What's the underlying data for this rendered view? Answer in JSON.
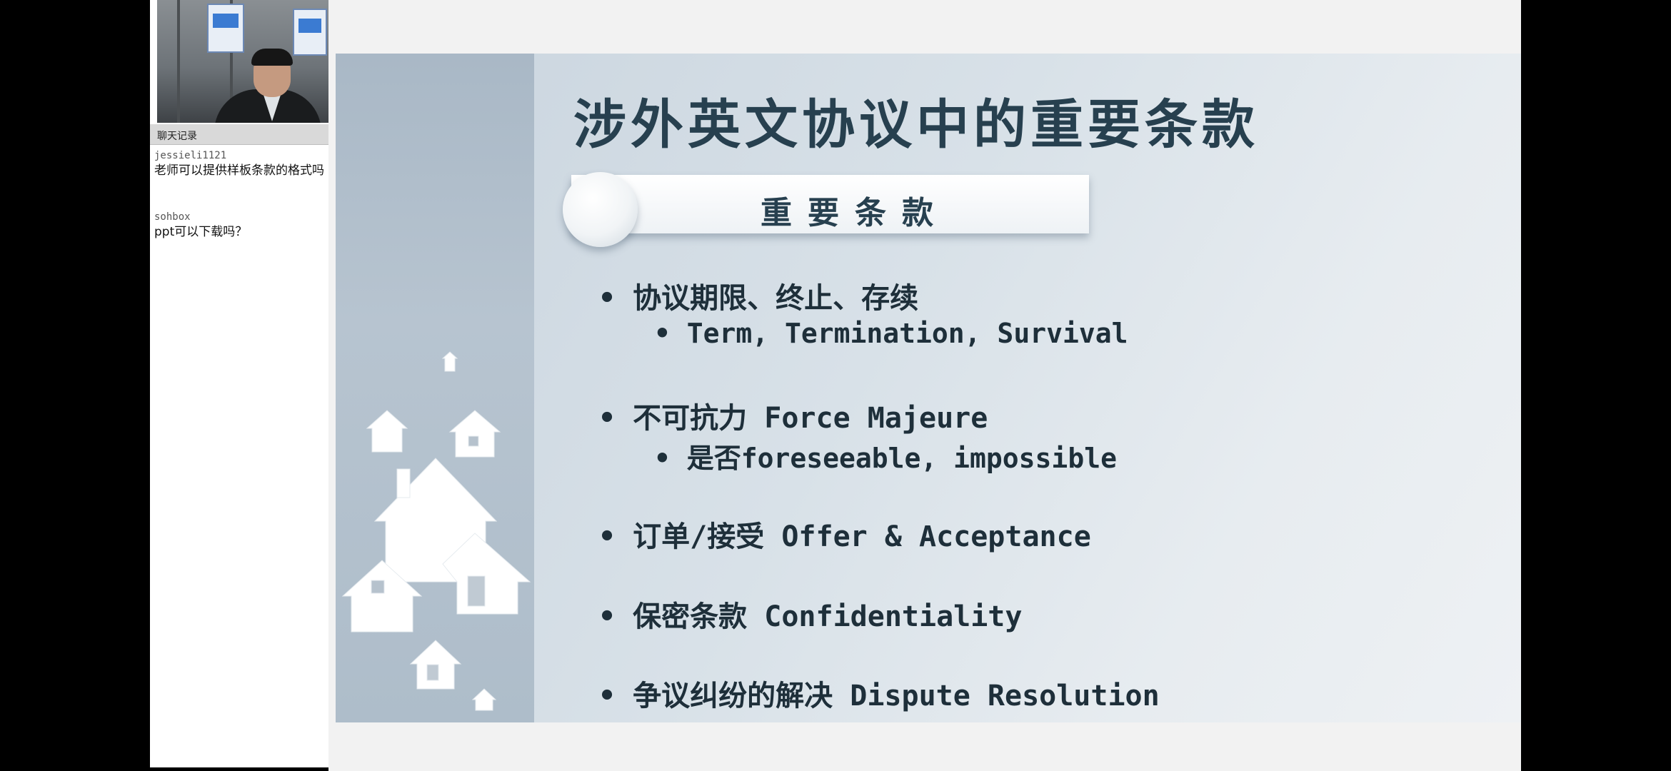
{
  "chat": {
    "header": "聊天记录",
    "messages": [
      {
        "user": "jessieli1121",
        "text": "老师可以提供样板条款的格式吗"
      },
      {
        "user": "sohbox",
        "text": "ppt可以下载吗？"
      }
    ]
  },
  "slide": {
    "title": "涉外英文协议中的重要条款",
    "banner": "重要条款",
    "bullets": [
      {
        "text": "• 协议期限、终止、存续",
        "sub": "• Term, Termination, Survival"
      },
      {
        "text": "• 不可抗力 Force Majeure",
        "sub": "• 是否foreseeable, impossible"
      },
      {
        "text": "• 订单/接受 Offer & Acceptance"
      },
      {
        "text": "• 保密条款 Confidentiality"
      },
      {
        "text": "• 争议纠纷的解决 Dispute Resolution"
      }
    ]
  },
  "colors": {
    "background": "#000000",
    "slide_title": "#27404f",
    "slide_text": "#1e2f3a"
  },
  "icons": [
    "house-icon"
  ]
}
